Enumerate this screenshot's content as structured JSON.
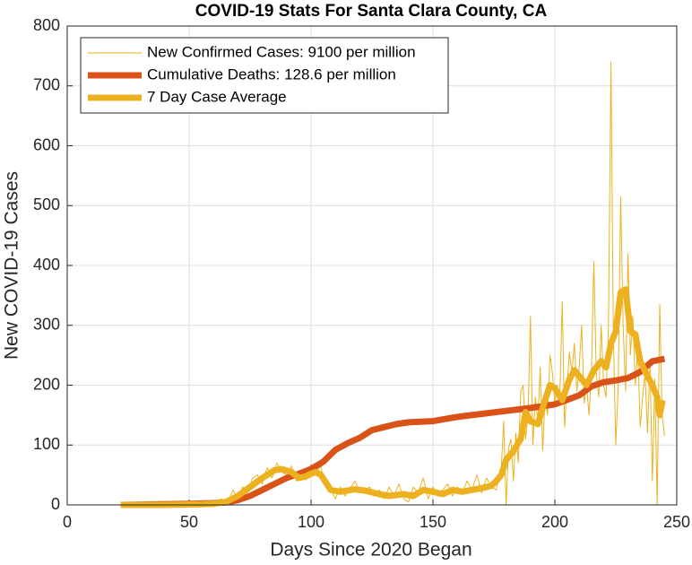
{
  "chart_data": {
    "type": "line",
    "title": "COVID-19 Stats For Santa Clara County, CA",
    "x_label": "Days Since 2020 Began",
    "y_label": "New COVID-19 Cases",
    "xlim": [
      0,
      250
    ],
    "xticks": [
      0,
      50,
      100,
      150,
      200,
      250
    ],
    "ylim": [
      0,
      800
    ],
    "yticks": [
      0,
      100,
      200,
      300,
      400,
      500,
      600,
      700,
      800
    ],
    "grid": true,
    "legend": "upper left",
    "series": [
      {
        "name": "New Confirmed Cases: 9100 per million",
        "color": "#EDB120",
        "line_width": 1,
        "x": [
          22,
          30,
          40,
          50,
          55,
          60,
          63,
          66,
          68,
          70,
          72,
          74,
          76,
          78,
          80,
          82,
          84,
          86,
          88,
          90,
          92,
          94,
          96,
          98,
          100,
          102,
          104,
          106,
          108,
          110,
          112,
          114,
          116,
          118,
          120,
          122,
          124,
          126,
          128,
          130,
          132,
          134,
          136,
          138,
          140,
          142,
          144,
          146,
          148,
          150,
          152,
          154,
          156,
          158,
          160,
          162,
          164,
          166,
          168,
          170,
          172,
          174,
          176,
          178,
          179,
          180,
          181,
          182,
          183,
          184,
          185,
          186,
          187,
          188,
          189,
          190,
          191,
          192,
          193,
          194,
          195,
          196,
          197,
          198,
          199,
          200,
          201,
          202,
          203,
          204,
          205,
          206,
          207,
          208,
          209,
          210,
          211,
          212,
          213,
          214,
          215,
          216,
          217,
          218,
          219,
          220,
          221,
          222,
          223,
          224,
          225,
          226,
          227,
          228,
          229,
          230,
          231,
          232,
          233,
          234,
          235,
          236,
          237,
          238,
          239,
          240,
          241,
          242,
          243,
          244,
          245
        ],
        "values": [
          0,
          0,
          1,
          2,
          1,
          3,
          10,
          5,
          25,
          10,
          30,
          20,
          45,
          50,
          35,
          62,
          45,
          70,
          55,
          50,
          65,
          40,
          50,
          42,
          68,
          55,
          65,
          30,
          25,
          10,
          30,
          15,
          28,
          40,
          20,
          25,
          30,
          15,
          25,
          10,
          30,
          15,
          35,
          10,
          5,
          30,
          20,
          45,
          10,
          30,
          15,
          25,
          35,
          15,
          30,
          20,
          40,
          25,
          50,
          20,
          45,
          30,
          25,
          60,
          140,
          0,
          95,
          110,
          40,
          120,
          70,
          190,
          200,
          110,
          150,
          315,
          100,
          180,
          140,
          230,
          90,
          180,
          150,
          250,
          220,
          170,
          200,
          175,
          340,
          130,
          200,
          255,
          220,
          270,
          190,
          230,
          300,
          170,
          200,
          150,
          220,
          407,
          220,
          180,
          300,
          200,
          180,
          300,
          740,
          280,
          100,
          200,
          515,
          300,
          190,
          420,
          250,
          315,
          200,
          260,
          130,
          180,
          220,
          120,
          240,
          40,
          210,
          0,
          335,
          150,
          115
        ]
      },
      {
        "name": "Cumulative Deaths: 128.6 per million",
        "color": "#D95319",
        "line_width": 7,
        "x": [
          22,
          50,
          60,
          65,
          70,
          75,
          80,
          85,
          90,
          95,
          100,
          105,
          110,
          115,
          120,
          125,
          130,
          135,
          140,
          150,
          160,
          170,
          180,
          190,
          200,
          210,
          215,
          220,
          225,
          230,
          235,
          240,
          245
        ],
        "values": [
          0,
          2,
          3,
          4,
          8,
          15,
          25,
          35,
          45,
          52,
          60,
          72,
          92,
          103,
          112,
          125,
          130,
          135,
          138,
          140,
          147,
          152,
          157,
          162,
          168,
          183,
          198,
          205,
          208,
          212,
          222,
          240,
          244
        ]
      },
      {
        "name": "7 Day Case Average",
        "color": "#EDB120",
        "line_width": 7,
        "x": [
          22,
          40,
          55,
          60,
          65,
          70,
          75,
          80,
          85,
          88,
          92,
          95,
          98,
          100,
          102,
          104,
          106,
          108,
          112,
          118,
          122,
          128,
          132,
          138,
          142,
          146,
          150,
          154,
          158,
          162,
          166,
          170,
          174,
          176,
          178,
          180,
          183,
          186,
          188,
          190,
          193,
          196,
          198,
          200,
          203,
          206,
          208,
          210,
          213,
          216,
          219,
          221,
          223,
          225,
          227,
          229,
          231,
          233,
          235,
          238,
          240,
          242,
          243,
          244,
          245
        ],
        "values": [
          0,
          0,
          1,
          2,
          5,
          15,
          30,
          45,
          58,
          60,
          55,
          45,
          48,
          52,
          55,
          50,
          38,
          25,
          22,
          26,
          24,
          18,
          15,
          18,
          15,
          25,
          22,
          18,
          25,
          22,
          25,
          28,
          32,
          40,
          50,
          75,
          90,
          110,
          155,
          140,
          135,
          175,
          200,
          195,
          175,
          210,
          225,
          215,
          200,
          225,
          240,
          230,
          270,
          290,
          355,
          360,
          290,
          285,
          240,
          215,
          200,
          180,
          150,
          170,
          168
        ]
      }
    ]
  }
}
